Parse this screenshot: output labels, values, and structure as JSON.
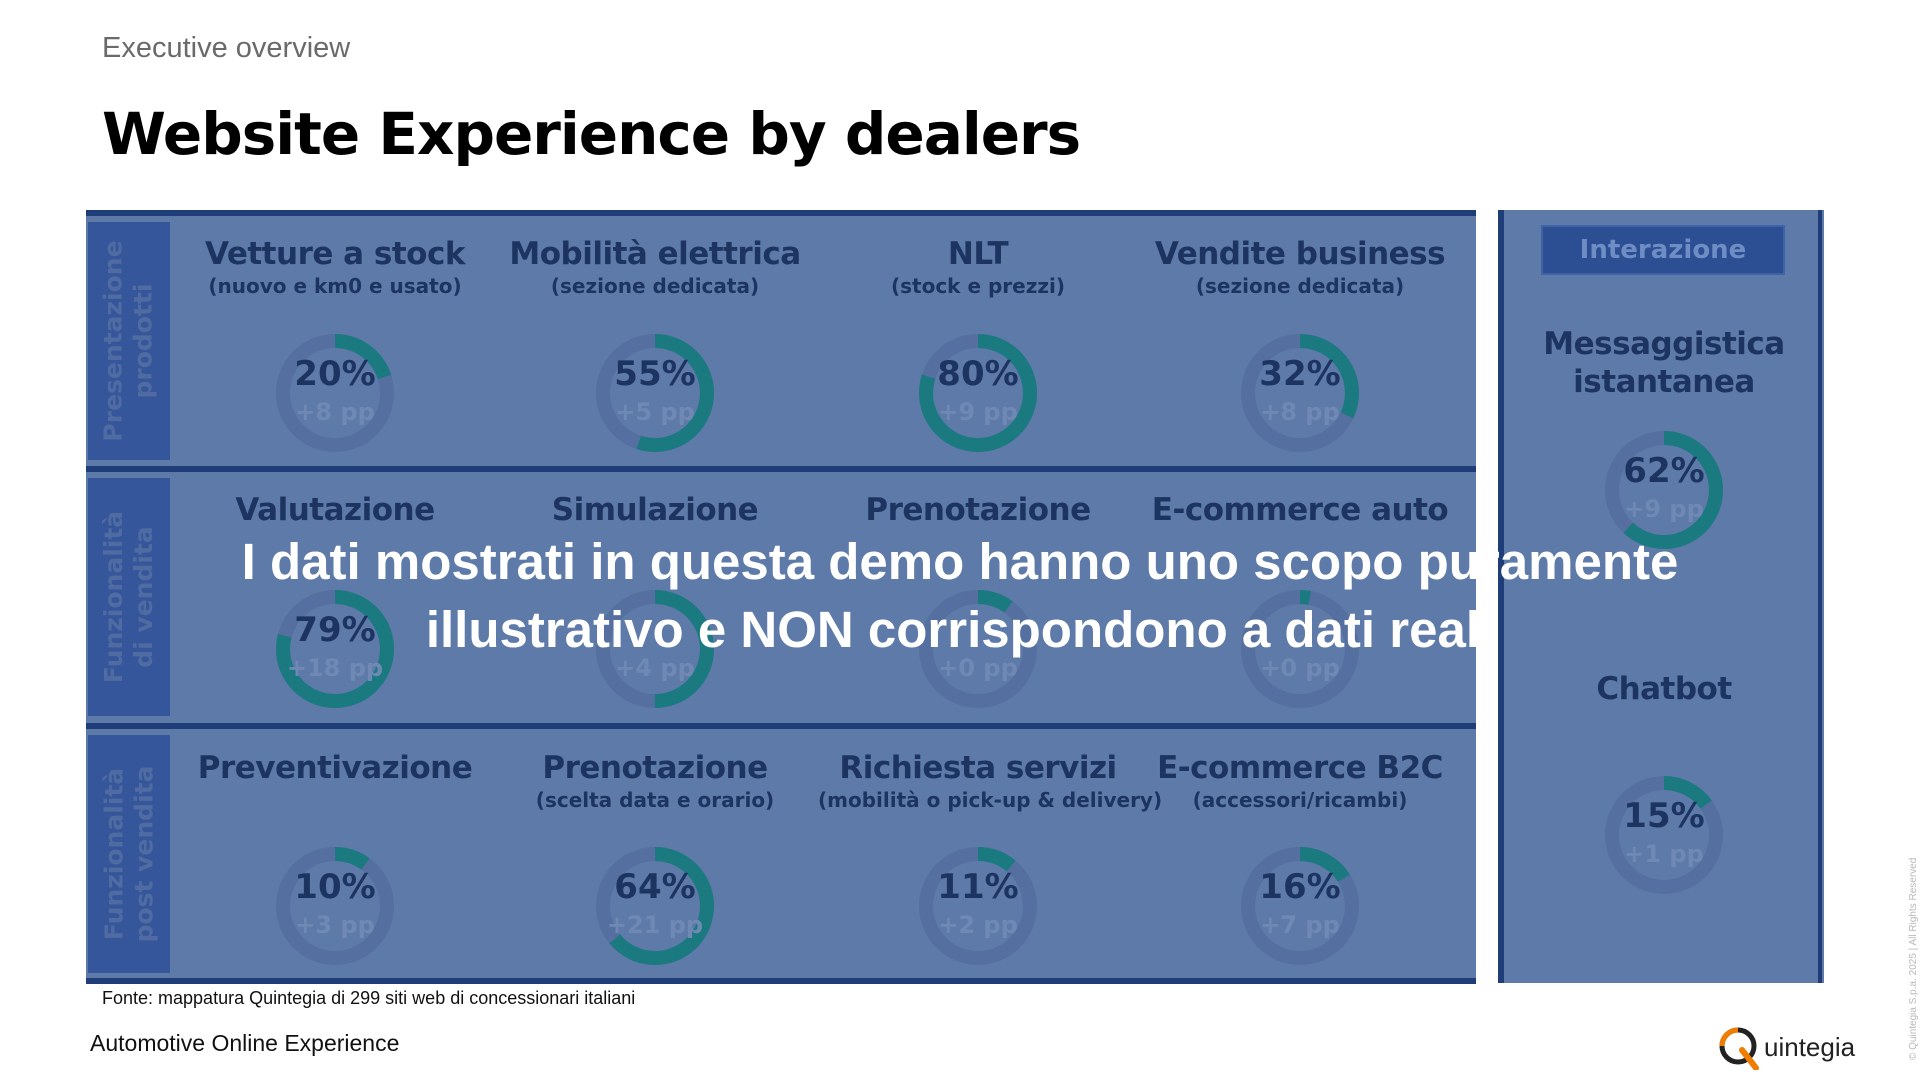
{
  "header": {
    "eyebrow": "Executive overview",
    "title": "Website Experience by dealers"
  },
  "colors": {
    "panel": "#5d7aa8",
    "accent_arc": "#1a7a80",
    "track": "#5570a0",
    "divider": "#1f3d78",
    "label_band": "#35569a"
  },
  "rows": [
    {
      "label": "Presentazione\nprodotti",
      "tiles": [
        {
          "title": "Vetture a stock",
          "subtitle": "(nuovo e km0 e usato)",
          "value": "20%",
          "fraction": 0.2,
          "delta": "+8 pp"
        },
        {
          "title": "Mobilità elettrica",
          "subtitle": "(sezione dedicata)",
          "value": "55%",
          "fraction": 0.55,
          "delta": "+5 pp"
        },
        {
          "title": "NLT",
          "subtitle": "(stock e prezzi)",
          "value": "80%",
          "fraction": 0.8,
          "delta": "+9 pp"
        },
        {
          "title": "Vendite business",
          "subtitle": "(sezione dedicata)",
          "value": "32%",
          "fraction": 0.32,
          "delta": "+8 pp"
        }
      ]
    },
    {
      "label": "Funzionalità\ndi vendita",
      "tiles": [
        {
          "title": "Valutazione",
          "subtitle": "",
          "value": "79%",
          "fraction": 0.79,
          "delta": "+18 pp"
        },
        {
          "title": "Simulazione",
          "subtitle": "",
          "value": "",
          "fraction": 0.5,
          "delta": "+4 pp"
        },
        {
          "title": "Prenotazione",
          "subtitle": "",
          "value": "",
          "fraction": 0.1,
          "delta": "+0 pp"
        },
        {
          "title": "E-commerce auto",
          "subtitle": "",
          "value": "",
          "fraction": 0.03,
          "delta": "+0 pp"
        }
      ]
    },
    {
      "label": "Funzionalità\npost vendita",
      "tiles": [
        {
          "title": "Preventivazione",
          "subtitle": "",
          "value": "10%",
          "fraction": 0.1,
          "delta": "+3 pp"
        },
        {
          "title": "Prenotazione",
          "subtitle": "(scelta data e orario)",
          "value": "64%",
          "fraction": 0.64,
          "delta": "+21 pp"
        },
        {
          "title": "Richiesta servizi",
          "subtitle": "(mobilità o pick-up & delivery)",
          "value": "11%",
          "fraction": 0.11,
          "delta": "+2 pp"
        },
        {
          "title": "E-commerce B2C",
          "subtitle": "(accessori/ricambi)",
          "value": "16%",
          "fraction": 0.16,
          "delta": "+7 pp"
        }
      ]
    }
  ],
  "interaction": {
    "badge": "Interazione",
    "items": [
      {
        "title": "Messaggistica\nistantanea",
        "value": "62%",
        "fraction": 0.62,
        "delta": "+9 pp"
      },
      {
        "title": "Chatbot",
        "value": "15%",
        "fraction": 0.15,
        "delta": "+1 pp"
      }
    ]
  },
  "overlay": {
    "line1": "I dati mostrati in questa demo hanno uno scopo puramente",
    "line2": "illustrativo e NON corrispondono a dati reali"
  },
  "source": "Fonte: mappatura Quintegia di 299 siti web di concessionari italiani",
  "footer": "Automotive Online Experience",
  "logo": {
    "text": "uintegia",
    "brand": "Quintegia"
  },
  "copyright": "© Quintegia S.p.a. 2025 | All Rights Reserved"
}
